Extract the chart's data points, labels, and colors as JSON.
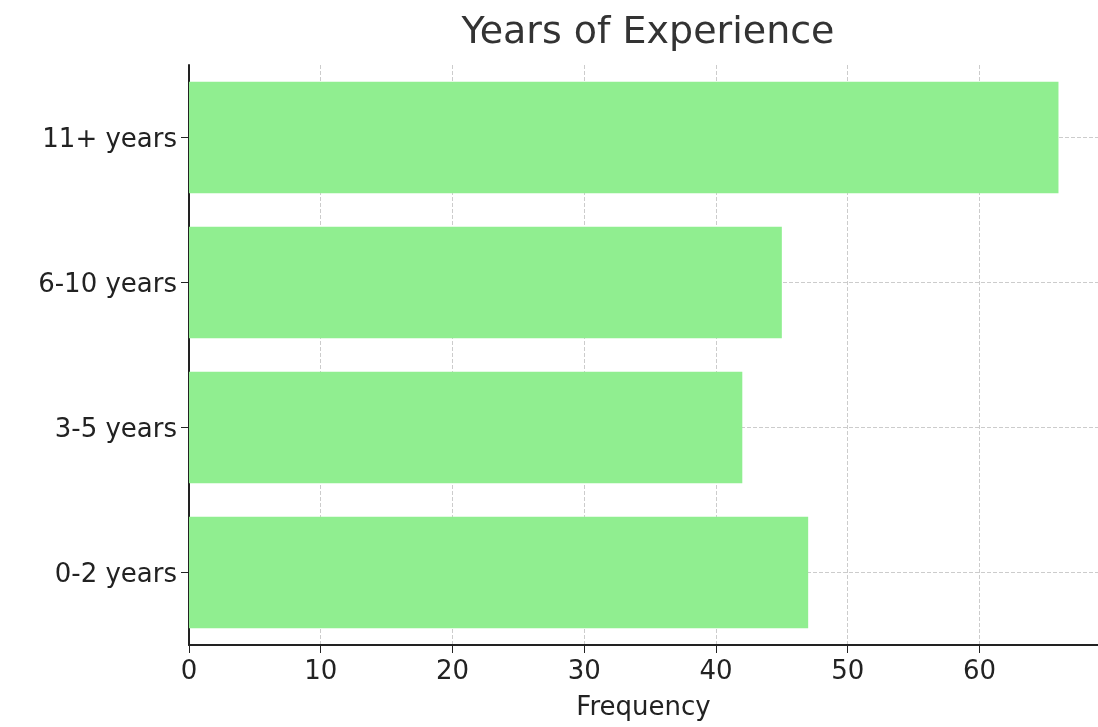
{
  "chart_data": {
    "type": "bar",
    "orientation": "horizontal",
    "title": "Years of Experience",
    "xlabel": "Frequency",
    "categories": [
      "11+ years",
      "6-10 years",
      "3-5 years",
      "0-2 years"
    ],
    "values": [
      66,
      45,
      42,
      47
    ],
    "color": "#90ee90",
    "xlim": [
      0,
      69
    ],
    "xticks": [
      0,
      10,
      20,
      30,
      40,
      50,
      60
    ],
    "grid": true
  }
}
